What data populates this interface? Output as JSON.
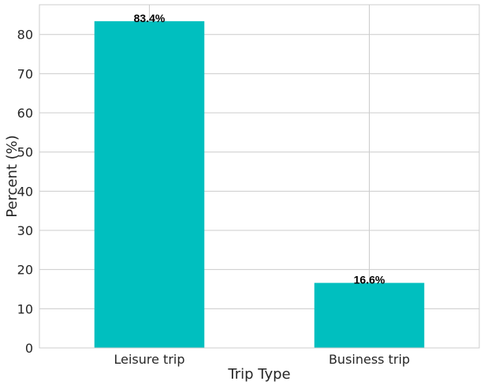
{
  "chart_data": {
    "type": "bar",
    "title": "",
    "xlabel": "Trip Type",
    "ylabel": "Percent (%)",
    "categories": [
      "Leisure trip",
      "Business trip"
    ],
    "values": [
      83.4,
      16.6
    ],
    "data_labels": [
      "83.4%",
      "16.6%"
    ],
    "ylim": [
      0,
      87.6
    ],
    "yticks": [
      0,
      10,
      20,
      30,
      40,
      50,
      60,
      70,
      80
    ],
    "grid": true,
    "bar_color": "#00bfbf"
  }
}
